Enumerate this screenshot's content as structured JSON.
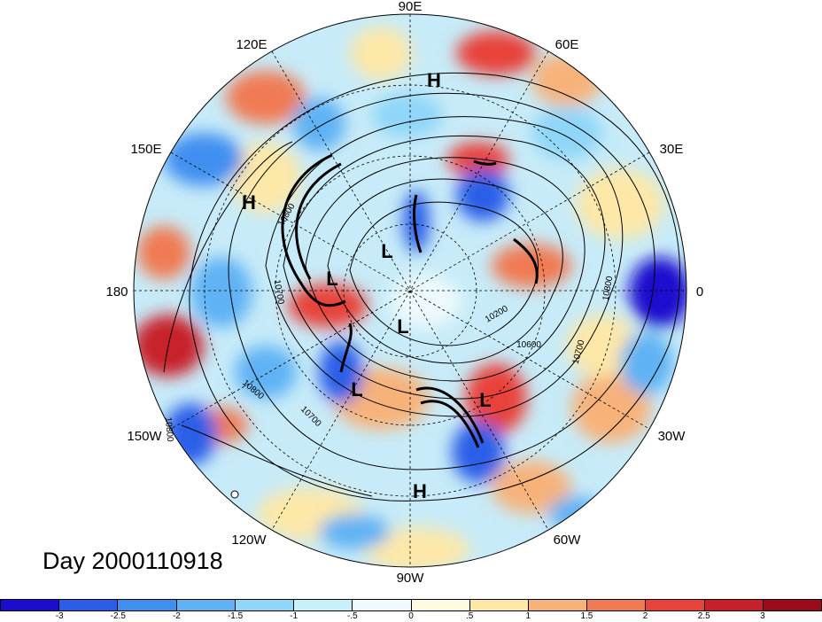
{
  "title": "Day 2000110918",
  "longitude_labels": [
    "90E",
    "60E",
    "30E",
    "0",
    "30W",
    "60W",
    "90W",
    "120W",
    "150W",
    "180",
    "150E",
    "120E"
  ],
  "pressure_centers": [
    {
      "label": "H",
      "lon_hint": "90E-60E"
    },
    {
      "label": "H",
      "lon_hint": "150E"
    },
    {
      "label": "L",
      "lon_hint": "180"
    },
    {
      "label": "L",
      "lon_hint": "pole"
    },
    {
      "label": "L",
      "lon_hint": "pole"
    },
    {
      "label": "L",
      "lon_hint": "120W"
    },
    {
      "label": "L",
      "lon_hint": "60W"
    },
    {
      "label": "H",
      "lon_hint": "90W"
    }
  ],
  "contour_labels": [
    "10800",
    "10700",
    "10200",
    "10600",
    "10800",
    "10700",
    "10800",
    "10700",
    "10800"
  ],
  "colorbar": {
    "colors": [
      "#1a0dcf",
      "#2a5ee8",
      "#3f8ff0",
      "#5fb2f4",
      "#8fd6f8",
      "#c8f0fb",
      "#eefafd",
      "#fffbe0",
      "#fde8a8",
      "#f7b27a",
      "#f07a52",
      "#e8433a",
      "#c8202a",
      "#9a0a1a"
    ],
    "ticks": [
      "-3",
      "-2.5",
      "-2",
      "-1.5",
      "-1",
      "-.5",
      "0",
      ".5",
      "1",
      "1.5",
      "2",
      "2.5",
      "3"
    ]
  }
}
